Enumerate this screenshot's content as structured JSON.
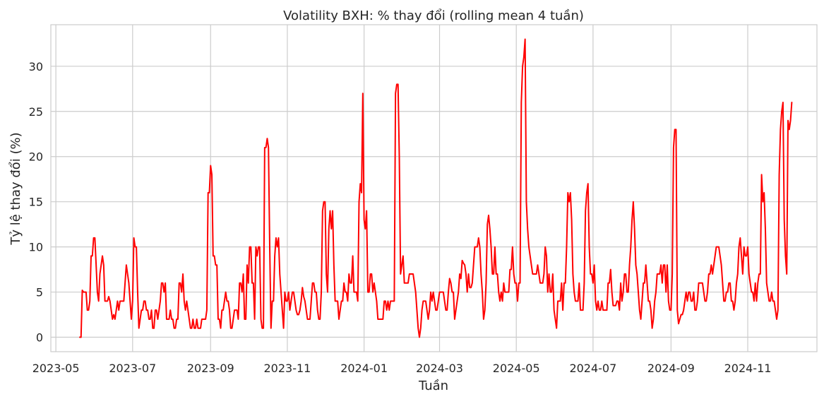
{
  "chart_data": {
    "type": "line",
    "title": "Volatility BXH: % thay đổi (rolling mean 4 tuần)",
    "xlabel": "Tuần",
    "ylabel": "Tỷ lệ thay đổi (%)",
    "x_ticks": [
      "2023-05",
      "2023-07",
      "2023-09",
      "2023-11",
      "2024-01",
      "2024-03",
      "2024-05",
      "2024-07",
      "2024-09",
      "2024-11"
    ],
    "y_ticks": [
      0,
      5,
      10,
      15,
      20,
      25,
      30
    ],
    "xlim": [
      "2023-04-27",
      "2024-12-26"
    ],
    "ylim": [
      -1.6,
      34.6
    ],
    "grid": true,
    "colors": {
      "line": "#ff0000",
      "grid": "#cccccc",
      "text": "#262626"
    },
    "series": [
      {
        "x_start": "2023-05-20",
        "x_step_days": 1,
        "values": [
          0,
          0,
          5.2,
          5,
          5,
          5,
          3,
          3,
          4,
          9,
          9,
          11,
          11,
          8,
          5,
          4,
          7,
          8,
          9,
          8,
          4,
          4,
          4,
          4.5,
          4,
          3,
          2,
          2.5,
          2,
          3,
          4,
          3,
          4,
          4,
          4,
          4,
          6,
          8,
          7,
          6,
          4,
          2,
          4,
          11,
          10,
          10,
          5,
          1,
          2,
          3,
          3,
          4,
          4,
          3,
          3,
          2,
          2,
          3,
          1,
          1,
          3,
          3,
          2,
          3,
          4,
          6,
          6,
          5,
          6,
          2,
          2,
          2,
          3,
          2,
          2,
          1,
          1,
          2,
          2,
          6,
          6,
          5,
          7,
          4,
          3,
          4,
          3,
          2,
          1,
          1,
          2,
          1,
          1,
          2,
          1,
          1,
          1,
          2,
          2,
          2,
          2,
          3,
          16,
          16,
          19,
          18,
          9,
          9,
          8,
          8,
          2,
          2,
          1,
          3,
          3,
          4,
          5,
          4,
          4,
          3,
          1,
          1,
          2,
          3,
          3,
          3,
          2,
          6,
          6,
          5,
          7,
          2,
          2,
          8,
          6,
          10,
          10,
          6,
          6,
          2,
          10,
          9,
          10,
          10,
          2,
          1,
          1,
          21,
          21,
          22,
          21,
          10,
          1,
          4,
          4,
          9,
          11,
          10,
          11,
          7,
          5,
          3,
          1,
          5,
          4,
          4,
          5,
          3,
          4,
          5,
          5,
          4,
          3,
          2.5,
          2.5,
          3,
          4,
          5.5,
          4.5,
          4,
          3,
          2,
          2,
          2,
          4,
          6,
          6,
          5,
          5,
          3,
          2,
          2,
          5,
          14,
          15,
          15,
          7,
          5,
          12,
          14,
          12,
          14,
          8,
          4,
          4,
          4,
          2,
          3,
          4,
          4,
          6,
          5,
          5,
          4,
          7,
          6,
          6,
          9,
          5,
          5,
          5,
          4,
          15,
          17,
          16,
          27,
          13,
          12,
          14,
          5,
          5,
          7,
          7,
          5,
          6,
          5,
          4,
          2,
          2,
          2,
          2,
          2,
          4,
          4,
          3,
          4,
          3,
          4,
          4,
          4,
          4,
          27,
          28,
          28,
          20,
          7,
          8,
          9,
          6,
          6,
          6,
          6,
          7,
          7,
          7,
          7,
          6,
          5,
          3,
          1,
          0,
          1,
          3,
          4,
          4,
          4,
          3,
          2,
          3,
          5,
          4,
          5,
          4,
          3,
          3,
          4,
          5,
          5,
          5,
          5,
          4,
          3,
          3,
          5,
          6.5,
          6,
          5,
          5,
          2,
          3,
          4,
          5,
          7,
          6.5,
          8.5,
          8.2,
          8,
          7,
          5,
          7,
          5.5,
          5.5,
          6,
          8,
          10,
          10,
          10,
          11,
          10,
          7,
          5,
          2,
          3,
          6,
          12.5,
          13.5,
          12,
          10,
          7,
          7,
          10,
          7,
          7,
          5,
          4,
          5,
          4,
          6,
          5,
          5,
          5,
          5,
          7.5,
          7.5,
          10,
          7,
          6,
          6,
          4,
          6,
          6,
          26,
          30,
          31,
          33,
          15,
          12,
          10,
          9,
          8,
          7,
          7,
          7,
          7,
          8,
          7,
          6,
          6,
          6,
          7,
          10,
          9,
          5,
          7,
          5,
          5,
          7,
          3,
          2,
          1,
          4,
          4,
          4,
          6,
          3,
          6,
          6,
          10,
          16,
          15,
          16,
          13,
          7,
          5,
          4,
          4,
          4,
          6,
          3,
          3,
          3,
          6,
          14,
          16,
          17,
          10,
          7,
          7,
          6,
          8,
          4,
          3,
          4,
          3,
          3,
          4,
          3,
          3,
          3,
          3,
          6,
          6,
          7.5,
          5,
          3.5,
          3.5,
          3.5,
          4,
          4,
          3,
          6,
          4,
          5,
          7,
          7,
          5,
          5,
          8,
          10,
          13,
          15,
          12,
          8,
          7,
          5,
          3,
          2,
          4,
          6,
          6,
          8,
          6,
          4,
          4,
          3,
          1,
          2,
          4,
          5,
          7,
          7,
          7,
          8,
          6,
          8,
          8,
          5,
          8,
          4,
          3,
          3,
          7,
          21,
          23,
          23,
          3,
          1.5,
          2,
          2.5,
          2.5,
          3,
          4,
          5,
          4,
          5,
          5,
          4,
          4,
          5,
          3,
          3,
          4,
          6,
          6,
          6,
          6,
          5,
          4,
          4,
          5,
          7,
          7,
          8,
          7,
          8,
          9,
          10,
          10,
          10,
          9,
          8,
          6,
          4,
          4,
          5,
          5,
          6,
          6,
          4,
          4,
          3,
          4,
          6,
          7,
          10,
          11,
          9,
          7,
          10,
          9,
          9,
          10,
          7,
          6,
          5,
          5,
          4,
          6,
          4,
          6,
          7,
          7,
          18,
          15,
          16,
          12,
          6,
          5,
          4,
          4,
          5,
          4,
          4,
          3,
          2,
          3,
          18,
          23,
          25,
          26,
          13,
          9,
          7,
          24,
          23,
          24,
          26
        ]
      }
    ]
  }
}
